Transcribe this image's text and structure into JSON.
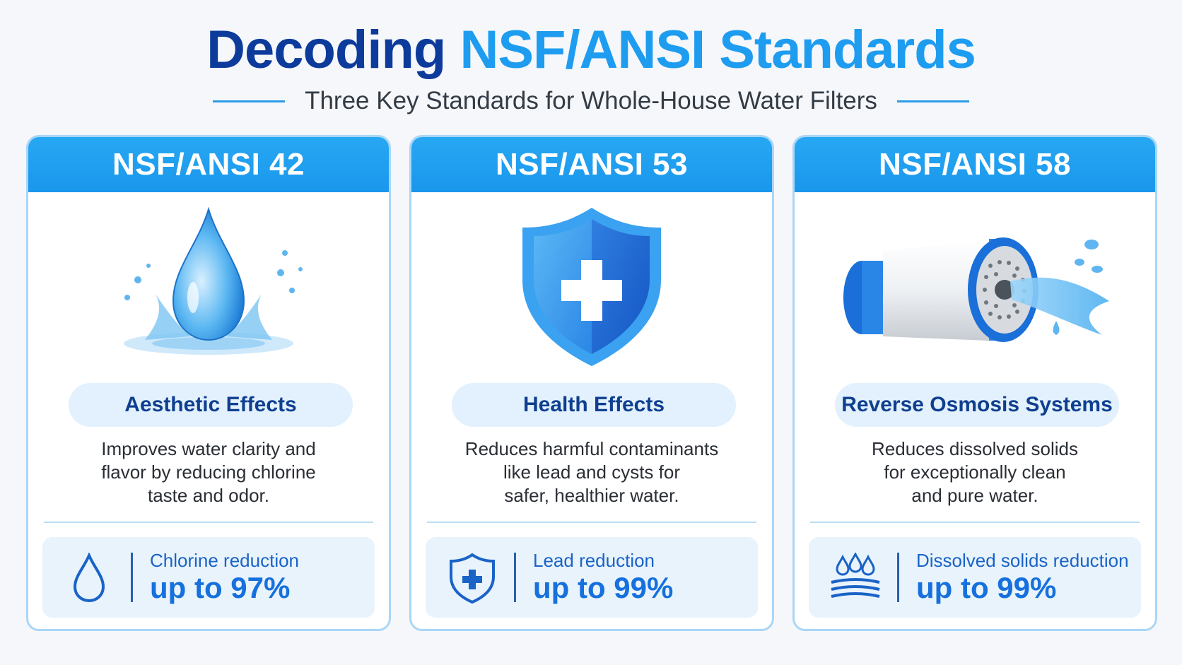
{
  "header": {
    "title_part1": "Decoding",
    "title_part2": "NSF/ANSI Standards",
    "subtitle": "Three Key Standards for Whole-House Water Filters"
  },
  "colors": {
    "title_dark": "#0d3b9c",
    "title_accent": "#1e9cf0",
    "card_header": "#1a96ec",
    "stat_value": "#1670dd"
  },
  "cards": [
    {
      "standard": "NSF/ANSI 42",
      "illustration": "water-drop-splash",
      "category": "Aesthetic Effects",
      "description": [
        "Improves water clarity and",
        "flavor by reducing chlorine",
        "taste and odor."
      ],
      "stat_icon": "water-drop-icon",
      "stat_label": "Chlorine reduction",
      "stat_value": "up to 97%"
    },
    {
      "standard": "NSF/ANSI 53",
      "illustration": "shield-cross",
      "category": "Health Effects",
      "description": [
        "Reduces harmful contaminants",
        "like lead and cysts for",
        "safer, healthier water."
      ],
      "stat_icon": "shield-cross-icon",
      "stat_label": "Lead reduction",
      "stat_value": "up to 99%"
    },
    {
      "standard": "NSF/ANSI 58",
      "illustration": "filter-cartridge",
      "category": "Reverse Osmosis Systems",
      "description": [
        "Reduces dissolved solids",
        "for exceptionally clean",
        "and pure water."
      ],
      "stat_icon": "dissolved-solids-icon",
      "stat_label": "Dissolved solids reduction",
      "stat_value": "up to 99%"
    }
  ]
}
